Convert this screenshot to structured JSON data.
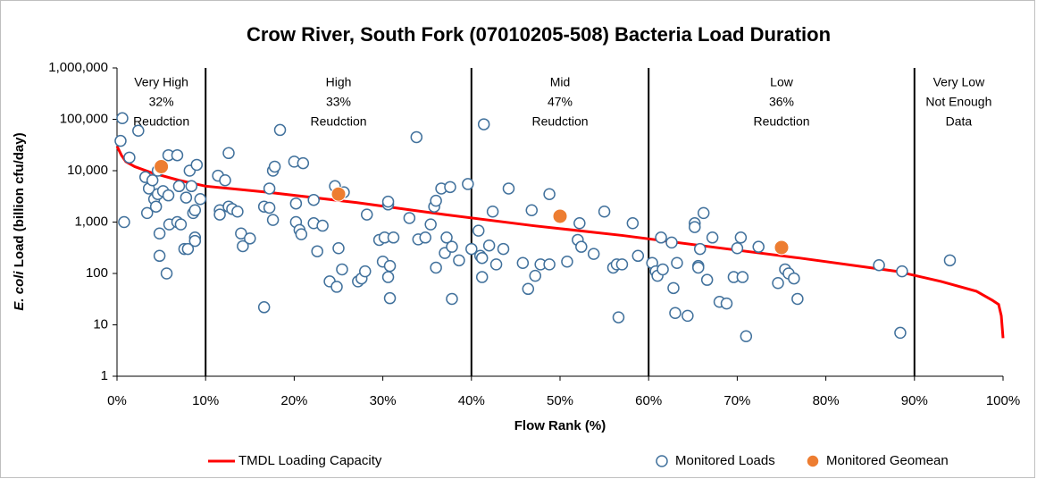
{
  "chart_data": {
    "type": "scatter",
    "title": "Crow River, South Fork (07010205-508) Bacteria Load Duration",
    "x_label": "Flow Rank (%)",
    "y_label": {
      "italic": "E. coli",
      "rest": " Load (billion cfu/day)"
    },
    "log_y": true,
    "xlim": [
      0,
      100
    ],
    "xticks": [
      {
        "value": 0,
        "label": "0%"
      },
      {
        "value": 10,
        "label": "10%"
      },
      {
        "value": 20,
        "label": "20%"
      },
      {
        "value": 30,
        "label": "30%"
      },
      {
        "value": 40,
        "label": "40%"
      },
      {
        "value": 50,
        "label": "50%"
      },
      {
        "value": 60,
        "label": "60%"
      },
      {
        "value": 70,
        "label": "70%"
      },
      {
        "value": 80,
        "label": "80%"
      },
      {
        "value": 90,
        "label": "90%"
      },
      {
        "value": 100,
        "label": "100%"
      }
    ],
    "ylim": [
      1,
      1000000
    ],
    "yticks": [
      1,
      10,
      100,
      {
        "value": 1000,
        "label": "1,000"
      },
      {
        "value": 10000,
        "label": "10,000"
      },
      {
        "value": 100000,
        "label": "100,000"
      },
      {
        "value": 1000000,
        "label": "1,000,000"
      }
    ],
    "zones": [
      {
        "start": 0,
        "end": 10,
        "lines": [
          "Very High",
          "32%",
          "Reudction"
        ]
      },
      {
        "start": 10,
        "end": 40,
        "lines": [
          "High",
          "33%",
          "Reudction"
        ]
      },
      {
        "start": 40,
        "end": 60,
        "lines": [
          "Mid",
          "47%",
          "Reudction"
        ]
      },
      {
        "start": 60,
        "end": 90,
        "lines": [
          "Low",
          "36%",
          "Reudction"
        ]
      },
      {
        "start": 90,
        "end": 100,
        "lines": [
          "Very Low",
          "Not Enough",
          "Data"
        ]
      }
    ],
    "series": [
      {
        "name": "TMDL Loading Capacity",
        "type": "line",
        "color": "#ff0000",
        "x": [
          0,
          0.5,
          1,
          2,
          4,
          7,
          10,
          17,
          27,
          37,
          47,
          57,
          67,
          77,
          88,
          93,
          97,
          98.8,
          99.5,
          99.8,
          100
        ],
        "values": [
          30000,
          20000,
          15000,
          12000,
          9000,
          6500,
          5000,
          3800,
          2400,
          1400,
          850,
          550,
          330,
          200,
          110,
          70,
          45,
          30,
          25,
          15,
          5.5
        ]
      },
      {
        "name": "Monitored Loads",
        "type": "scatter",
        "color": "#41719c",
        "x": [
          0.4,
          0.6,
          0.8,
          1.4,
          2.4,
          3.2,
          3.4,
          3.6,
          4,
          4.2,
          4.4,
          4.6,
          4.8,
          4.8,
          5.2,
          5.6,
          5.8,
          5.8,
          5.9,
          6.8,
          6.8,
          7,
          7.2,
          7.6,
          7.8,
          8,
          8.2,
          8.4,
          8.6,
          8.8,
          8.8,
          8.8,
          9,
          9.4,
          4.6,
          11.4,
          11.6,
          11.6,
          12.2,
          12.6,
          12.6,
          13,
          13.6,
          14,
          14.2,
          15,
          16.6,
          16.6,
          17.2,
          17.2,
          17.6,
          17.6,
          17.8,
          18.4,
          20,
          20.2,
          20.2,
          20.6,
          20.8,
          21,
          22.2,
          22.2,
          22.6,
          23.2,
          24,
          24.6,
          24.8,
          25,
          25.4,
          25.6,
          27.2,
          27.6,
          28,
          28.2,
          29.6,
          30,
          30.2,
          30.6,
          30.6,
          30.6,
          30.8,
          30.8,
          31.2,
          33,
          33.8,
          34,
          34.8,
          35.4,
          35.8,
          36,
          36,
          36.6,
          37,
          37.2,
          37.6,
          37.8,
          37.8,
          38.6,
          39.6,
          40,
          40.8,
          41,
          41.2,
          41.2,
          41.4,
          42,
          42.4,
          42.8,
          43.6,
          44.2,
          45.8,
          46.4,
          46.8,
          47.2,
          47.8,
          48.8,
          48.8,
          50.8,
          52,
          52.2,
          52.4,
          53.8,
          55,
          56,
          56.4,
          56.6,
          57,
          58.2,
          58.8,
          60.4,
          60.8,
          61,
          61.4,
          61.6,
          62.6,
          62.8,
          63,
          63.2,
          64.4,
          65.2,
          65.2,
          65.6,
          65.6,
          65.8,
          66.2,
          66.6,
          67.2,
          68,
          68.8,
          69.6,
          70,
          70.4,
          70.6,
          71,
          72.4,
          74.6,
          75.4,
          75.8,
          76.4,
          76.8,
          86,
          88.4,
          88.6,
          94
        ],
        "values": [
          38000,
          105000,
          1000,
          18000,
          60000,
          7500,
          1500,
          4500,
          6500,
          2800,
          2000,
          3500,
          600,
          220,
          4000,
          100,
          3300,
          20000,
          900,
          1000,
          20000,
          5000,
          900,
          300,
          3000,
          300,
          10000,
          5000,
          1500,
          500,
          430,
          1700,
          13000,
          2800,
          10000,
          8000,
          1700,
          1400,
          6500,
          22000,
          2000,
          1800,
          1600,
          600,
          340,
          480,
          22,
          2000,
          1900,
          4500,
          10000,
          1100,
          12000,
          62000,
          15000,
          1000,
          2300,
          700,
          580,
          14000,
          2700,
          950,
          270,
          850,
          70,
          5000,
          55,
          310,
          120,
          3800,
          70,
          80,
          110,
          1400,
          450,
          170,
          500,
          2200,
          2500,
          85,
          140,
          33,
          500,
          1200,
          45000,
          460,
          500,
          900,
          2000,
          2600,
          130,
          4500,
          250,
          500,
          4800,
          330,
          32,
          180,
          5500,
          300,
          680,
          220,
          200,
          85,
          80000,
          350,
          1600,
          150,
          300,
          4500,
          160,
          50,
          1700,
          90,
          150,
          3500,
          150,
          170,
          450,
          950,
          330,
          240,
          1600,
          130,
          150,
          14,
          150,
          950,
          220,
          160,
          110,
          90,
          500,
          120,
          400,
          52,
          17,
          160,
          15,
          950,
          800,
          140,
          130,
          300,
          1500,
          75,
          500,
          28,
          26,
          85,
          310,
          500,
          85,
          6,
          330,
          65,
          120,
          100,
          80,
          32,
          145,
          7,
          110,
          180
        ]
      },
      {
        "name": "Monitored Geomean",
        "type": "scatter",
        "color": "#ed7d31",
        "filled": true,
        "x": [
          5,
          25,
          50,
          75
        ],
        "values": [
          12000,
          3500,
          1300,
          320
        ]
      }
    ]
  }
}
